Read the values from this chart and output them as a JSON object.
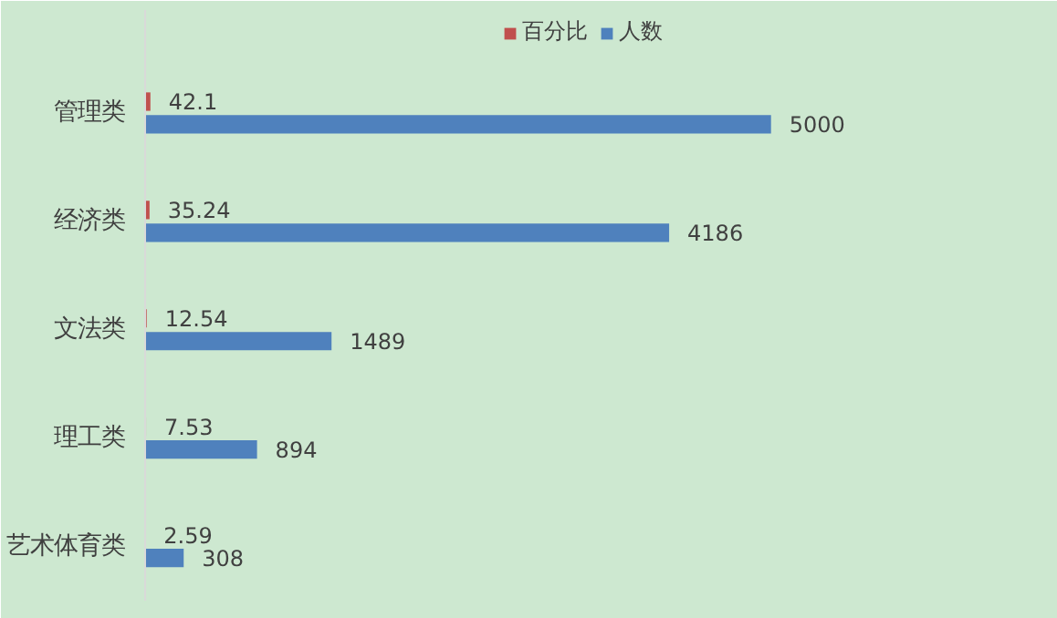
{
  "chart_data": {
    "type": "bar",
    "orientation": "horizontal",
    "categories": [
      "管理类",
      "经济类",
      "文法类",
      "理工类",
      "艺术体育类"
    ],
    "series": [
      {
        "name": "百分比",
        "color": "#c0504d",
        "values": [
          42.1,
          35.24,
          12.54,
          7.53,
          2.59
        ]
      },
      {
        "name": "人数",
        "color": "#4f81bd",
        "values": [
          5000,
          4186,
          1489,
          894,
          308
        ]
      }
    ],
    "xlim": [
      0,
      7000
    ],
    "data_labels": true,
    "legend": "top",
    "grid": false
  }
}
